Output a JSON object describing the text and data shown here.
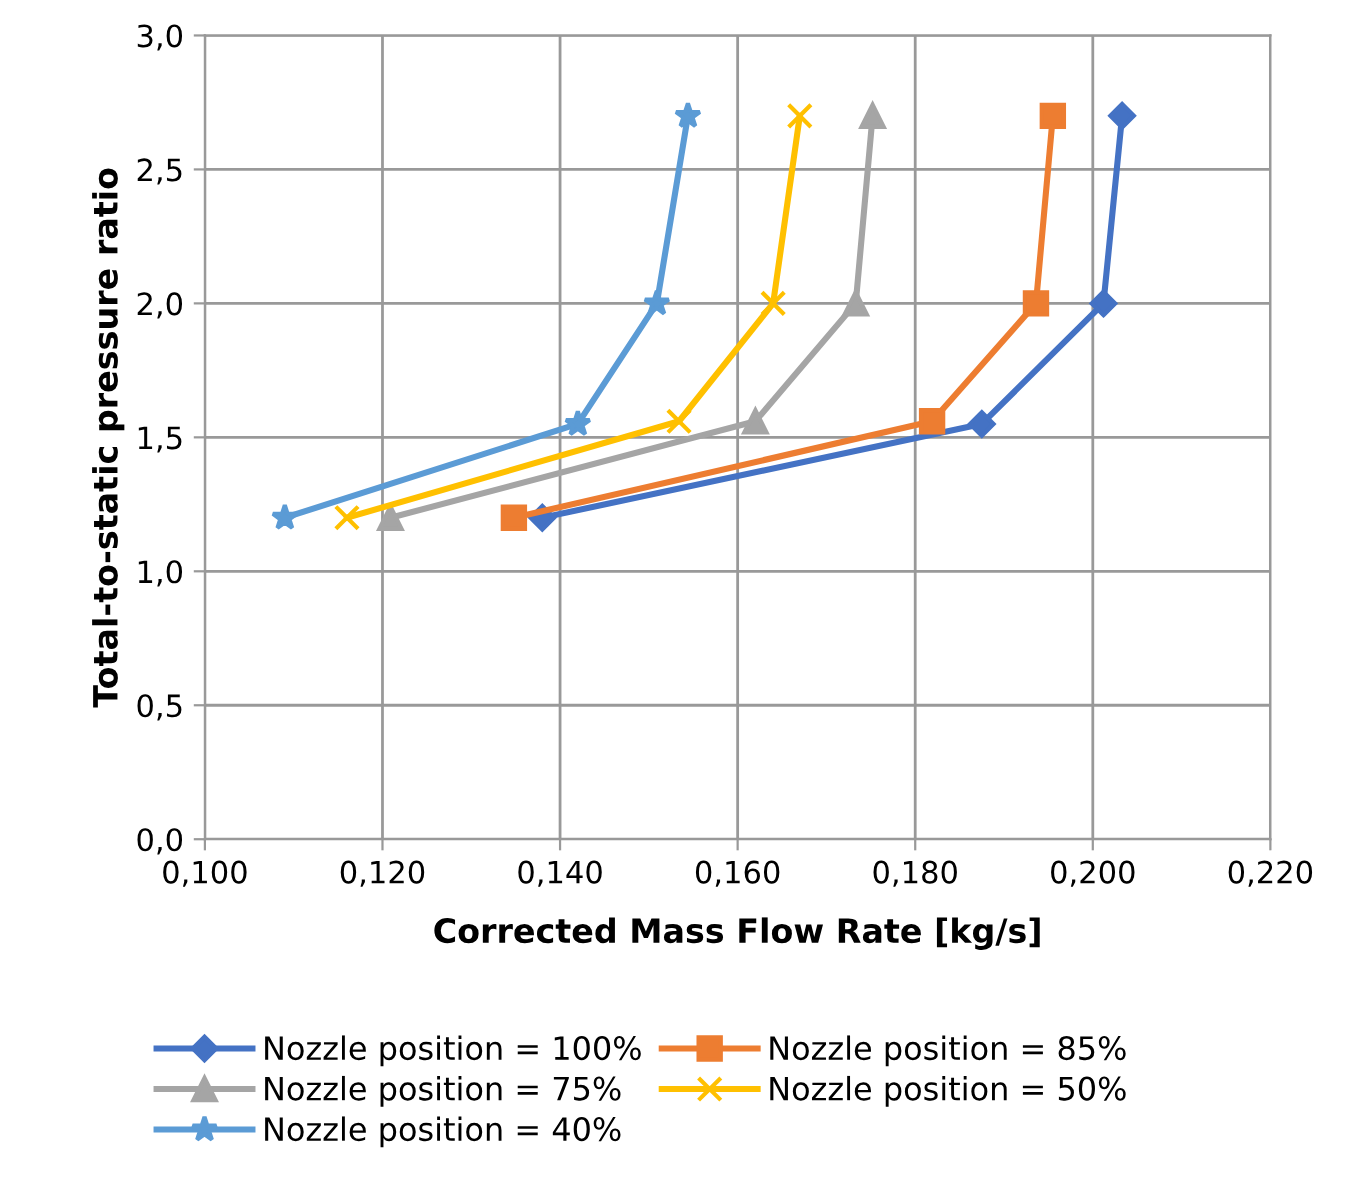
{
  "chart_data": {
    "type": "line",
    "xlabel": "Corrected Mass Flow Rate [kg/s]",
    "ylabel": "Total-to-static pressure ratio",
    "xlim": [
      0.1,
      0.22
    ],
    "xticks": [
      {
        "value": 0.1,
        "label": "0,100"
      },
      {
        "value": 0.12,
        "label": "0,120"
      },
      {
        "value": 0.14,
        "label": "0,140"
      },
      {
        "value": 0.16,
        "label": "0,160"
      },
      {
        "value": 0.18,
        "label": "0,180"
      },
      {
        "value": 0.2,
        "label": "0,200"
      },
      {
        "value": 0.22,
        "label": "0,220"
      }
    ],
    "ylim": [
      0,
      3
    ],
    "yticks": [
      {
        "value": 0,
        "label": "0,0"
      },
      {
        "value": 0.5,
        "label": "0,5"
      },
      {
        "value": 1,
        "label": "1,0"
      },
      {
        "value": 1.5,
        "label": "1,5"
      },
      {
        "value": 2,
        "label": "2,0"
      },
      {
        "value": 2.5,
        "label": "2,5"
      },
      {
        "value": 3,
        "label": "3,0"
      }
    ],
    "grid": true,
    "legend": "bottom",
    "series": [
      {
        "name": "Nozzle position = 100%",
        "color": "#4472c4",
        "marker": "diamond",
        "x": [
          0.138,
          0.1875,
          0.2012,
          0.2033
        ],
        "values": [
          1.2,
          1.55,
          2.0,
          2.7
        ]
      },
      {
        "name": "Nozzle position = 85%",
        "color": "#ed7d31",
        "marker": "square",
        "x": [
          0.1348,
          0.1819,
          0.1936,
          0.1955
        ],
        "values": [
          1.2,
          1.56,
          2.0,
          2.7
        ]
      },
      {
        "name": "Nozzle position = 75%",
        "color": "#a5a5a5",
        "marker": "triangle",
        "x": [
          0.1209,
          0.162,
          0.1733,
          0.1752
        ],
        "values": [
          1.2,
          1.56,
          2.0,
          2.7
        ]
      },
      {
        "name": "Nozzle position = 50%",
        "color": "#ffc000",
        "marker": "cross",
        "x": [
          0.116,
          0.1534,
          0.164,
          0.167
        ],
        "values": [
          1.2,
          1.56,
          2.0,
          2.7
        ]
      },
      {
        "name": "Nozzle position = 40%",
        "color": "#5b9bd5",
        "marker": "star",
        "x": [
          0.109,
          0.142,
          0.1509,
          0.1544
        ],
        "values": [
          1.2,
          1.55,
          2.0,
          2.7
        ]
      }
    ]
  }
}
